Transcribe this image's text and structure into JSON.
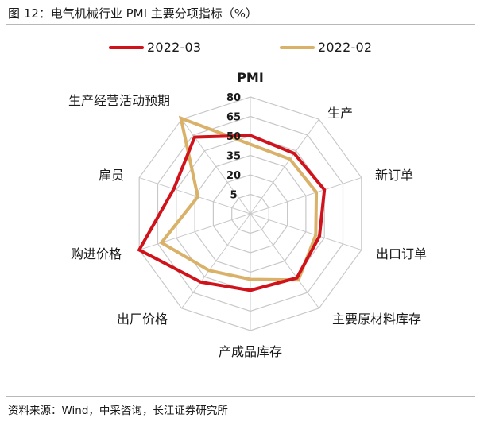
{
  "figure": {
    "title": "图 12：电气机械行业 PMI 主要分项指标（%）",
    "source": "资料来源：Wind，中采咨询，长江证券研究所"
  },
  "colors": {
    "series_2022_03": "#d0121b",
    "series_2022_02": "#d9b168",
    "grid": "#c8c8c8"
  },
  "chart_data": {
    "type": "radar",
    "title": "",
    "categories": [
      "PMI",
      "生产",
      "新订单",
      "出口订单",
      "主要原材料库存",
      "产成品库存",
      "出厂价格",
      "购进价格",
      "雇员",
      "生产经营活动预期"
    ],
    "axis_ticks": [
      5,
      20,
      35,
      50,
      65,
      80
    ],
    "range": [
      -10,
      80
    ],
    "grid": true,
    "legend_position": "top",
    "series": [
      {
        "name": "2022-03",
        "values": [
          50.3,
          47.5,
          50.0,
          46.0,
          51.0,
          49.0,
          55.0,
          80.0,
          52.0,
          63.0
        ]
      },
      {
        "name": "2022-02",
        "values": [
          43.5,
          42.0,
          43.5,
          43.0,
          53.0,
          40.5,
          44.0,
          62.0,
          32.5,
          81.0
        ]
      }
    ]
  }
}
